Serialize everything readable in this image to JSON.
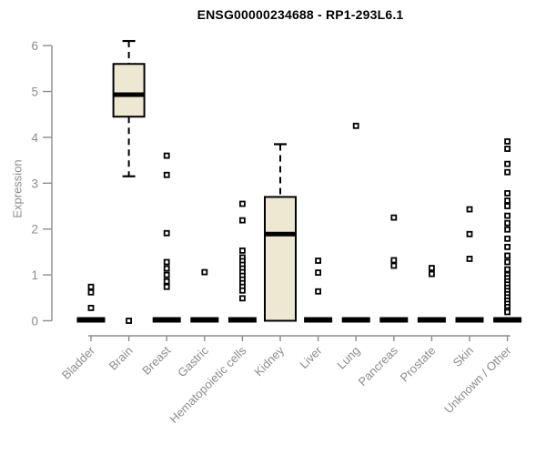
{
  "header": {
    "title": "ENSG00000234688 - RP1-293L6.1"
  },
  "chart_data": {
    "type": "boxplot",
    "title": "ENSG00000234688 - RP1-293L6.1",
    "xlabel": "",
    "ylabel": "Expression",
    "ylim": [
      0,
      6
    ],
    "yticks": [
      0,
      1,
      2,
      3,
      4,
      5,
      6
    ],
    "grid": false,
    "legend": "none",
    "categories": [
      "Bladder",
      "Brain",
      "Breast",
      "Gastric",
      "Hematopoietic cells",
      "Kidney",
      "Liver",
      "Lung",
      "Pancreas",
      "Prostate",
      "Skin",
      "Unknown / Other"
    ],
    "boxes": [
      {
        "category": "Bladder",
        "collapsed": true,
        "median": 0,
        "outliers": [
          0.74,
          0.62,
          0.28
        ]
      },
      {
        "category": "Brain",
        "collapsed": false,
        "whisker_low": 3.15,
        "q1": 4.45,
        "median": 4.93,
        "q3": 5.6,
        "whisker_high": 6.1,
        "outliers": [
          0
        ]
      },
      {
        "category": "Breast",
        "collapsed": true,
        "median": 0,
        "outliers": [
          3.6,
          3.18,
          1.91,
          1.28,
          1.14,
          1.0,
          0.86,
          0.74
        ]
      },
      {
        "category": "Gastric",
        "collapsed": true,
        "median": 0,
        "outliers": [
          1.06
        ]
      },
      {
        "category": "Hematopoietic cells",
        "collapsed": true,
        "median": 0,
        "outliers": [
          2.55,
          2.19,
          1.53,
          1.38,
          1.3,
          1.22,
          1.14,
          1.06,
          0.98,
          0.9,
          0.82,
          0.74,
          0.66,
          0.49
        ]
      },
      {
        "category": "Kidney",
        "collapsed": false,
        "whisker_low": 0,
        "q1": 0,
        "median": 1.89,
        "q3": 2.7,
        "whisker_high": 3.85,
        "outliers": []
      },
      {
        "category": "Liver",
        "collapsed": true,
        "median": 0,
        "outliers": [
          1.31,
          1.05,
          0.64
        ]
      },
      {
        "category": "Lung",
        "collapsed": true,
        "median": 0,
        "outliers": [
          4.25
        ]
      },
      {
        "category": "Pancreas",
        "collapsed": true,
        "median": 0,
        "outliers": [
          2.25,
          1.32,
          1.2
        ]
      },
      {
        "category": "Prostate",
        "collapsed": true,
        "median": 0,
        "outliers": [
          1.15,
          1.02
        ]
      },
      {
        "category": "Skin",
        "collapsed": true,
        "median": 0,
        "outliers": [
          2.43,
          1.89,
          1.35
        ]
      },
      {
        "category": "Unknown / Other",
        "collapsed": true,
        "median": 0,
        "outliers": [
          3.91,
          3.75,
          3.42,
          3.24,
          2.78,
          2.62,
          2.5,
          2.29,
          2.13,
          1.99,
          1.79,
          1.61,
          1.42,
          1.28,
          1.12,
          1.0,
          0.93,
          0.86,
          0.79,
          0.72,
          0.65,
          0.58,
          0.51,
          0.44,
          0.37,
          0.3,
          0.23,
          0.19
        ]
      }
    ],
    "colors": {
      "box_fill": "#EDE8D1",
      "box_stroke": "#000000",
      "median": "#000000",
      "zero_bar": "#000000",
      "outlier_stroke": "#000000",
      "axis": "#8c8c8c",
      "tick_label": "#8c8c8c",
      "title": "#000000",
      "background": "#FFFFFF"
    }
  }
}
